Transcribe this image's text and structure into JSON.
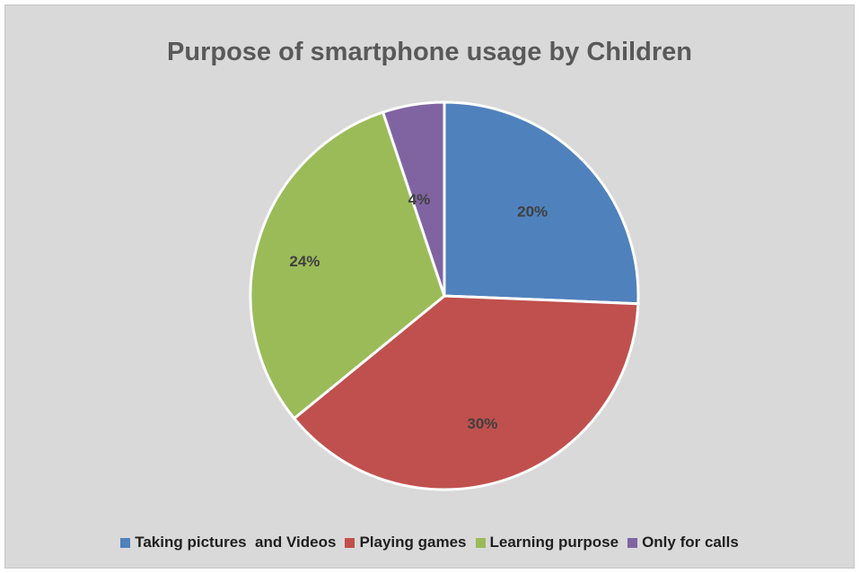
{
  "chart_data": {
    "type": "pie",
    "title": "Purpose of smartphone usage by Children",
    "categories": [
      "Taking pictures  and Videos",
      "Playing games",
      "Learning purpose",
      "Only for calls"
    ],
    "values": [
      20,
      30,
      24,
      4
    ],
    "data_labels": [
      "20%",
      "30%",
      "24%",
      "4%"
    ],
    "colors": [
      "#4f81bd",
      "#c0504d",
      "#9bbb59",
      "#8064a2"
    ],
    "start_angle_deg": 0,
    "direction": "clockwise",
    "legend_position": "bottom"
  }
}
